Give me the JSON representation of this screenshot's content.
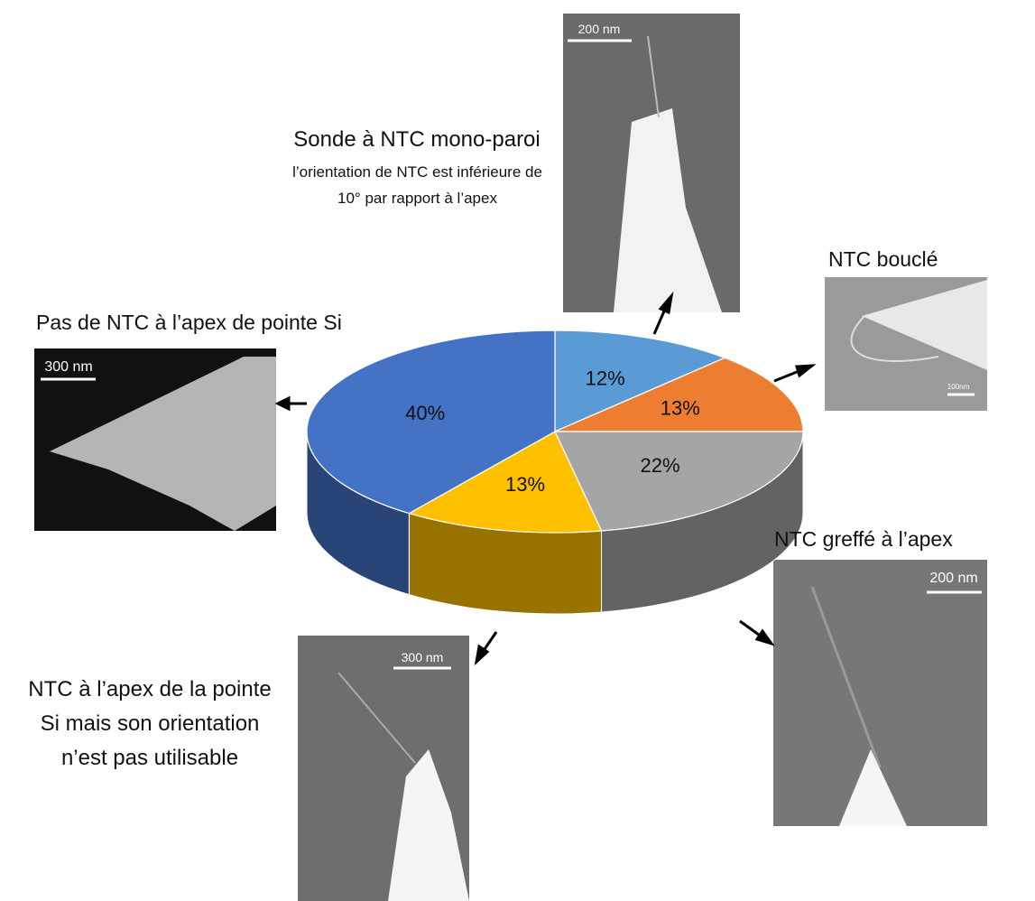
{
  "chart_data": {
    "type": "pie",
    "categories": [
      "Sonde à NTC mono-paroi",
      "NTC bouclé",
      "NTC greffé à l’apex",
      "NTC à l’apex de la pointe Si mais son orientation n’est pas utilisable",
      "Pas de NTC à l’apex de pointe Si"
    ],
    "notes": [
      "l’orientation de NTC est inférieure de 10° par rapport à l’apex"
    ],
    "values": [
      12,
      13,
      22,
      13,
      40
    ],
    "value_labels": [
      "12%",
      "13%",
      "22%",
      "13%",
      "40%"
    ],
    "colors": [
      "#5b9bd5",
      "#ed7d31",
      "#a5a5a5",
      "#ffc000",
      "#4472c4"
    ],
    "scale_bars": [
      "200 nm",
      "100nm",
      "300 nm",
      "200 nm",
      "300 nm"
    ]
  }
}
